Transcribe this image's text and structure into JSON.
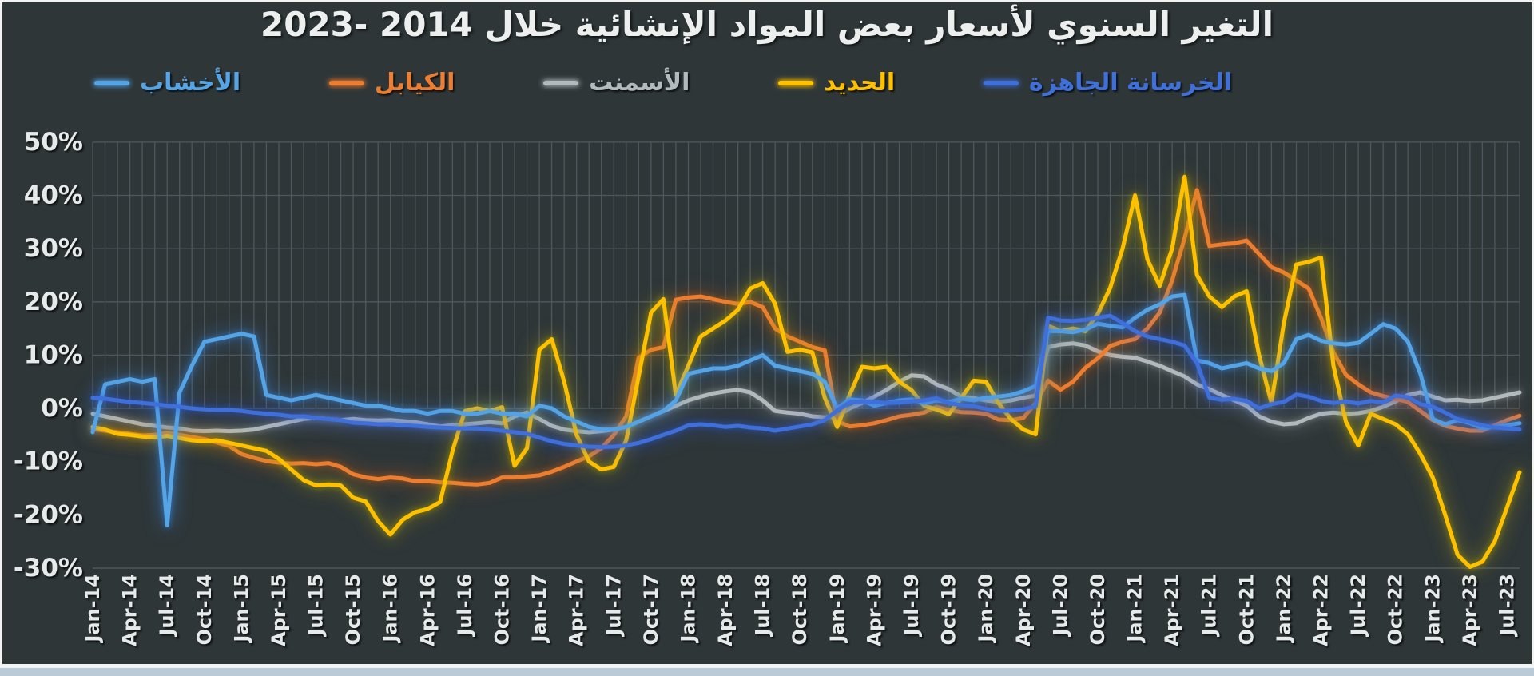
{
  "page": {
    "background": "#F2F4F3",
    "panel_background": "#2E3638",
    "grid_color": "#4E585C",
    "axis_text_color": "#E6EAEA",
    "bottom_bar_color": "#B9CBD6"
  },
  "title": {
    "text": "التغير السنوي لأسعار بعض المواد الإنشائية خلال 2014 -2023"
  },
  "legend": {
    "items": [
      {
        "id": "wood",
        "label": "الأخشاب",
        "color": "#55A4E5"
      },
      {
        "id": "cables",
        "label": "الكيابل",
        "color": "#ED7D31"
      },
      {
        "id": "cement",
        "label": "الأسمنت",
        "color": "#B3BABD"
      },
      {
        "id": "steel",
        "label": "الحديد",
        "color": "#FFC000"
      },
      {
        "id": "ready-mix-concrete",
        "label": "الخرسانة الجاهزة",
        "color": "#3F6FD8"
      }
    ]
  },
  "chart_data": {
    "type": "line",
    "title": "التغير السنوي لأسعار بعض المواد الإنشائية خلال 2014 -2023",
    "xlabel": "",
    "ylabel": "",
    "ylim": [
      -30,
      50
    ],
    "grid": true,
    "legend_position": "top",
    "y_tick_values": [
      50,
      40,
      30,
      20,
      10,
      0,
      -10,
      -20,
      -30
    ],
    "y_tick_labels": [
      "50%",
      "40%",
      "30%",
      "20%",
      "10%",
      "0%",
      "-10%",
      "-20%",
      "-30%"
    ],
    "x_tick_every": 3,
    "months_total": 116,
    "x_start": "Jan-14",
    "x_end": "Aug-23",
    "x_tick_labels": [
      "Jan-14",
      "Apr-14",
      "Jul-14",
      "Oct-14",
      "Jan-15",
      "Apr-15",
      "Jul-15",
      "Oct-15",
      "Jan-16",
      "Apr-16",
      "Jul-16",
      "Oct-16",
      "Jan-17",
      "Apr-17",
      "Jul-17",
      "Oct-17",
      "Jan-18",
      "Apr-18",
      "Jul-18",
      "Oct-18",
      "Jan-19",
      "Apr-19",
      "Jul-19",
      "Oct-19",
      "Jan-20",
      "Apr-20",
      "Jul-20",
      "Oct-20",
      "Jan-21",
      "Apr-21",
      "Jul-21",
      "Oct-21",
      "Jan-22",
      "Apr-22",
      "Jul-22",
      "Oct-22",
      "Jan-23",
      "Apr-23",
      "Jul-23"
    ],
    "series": [
      {
        "name": "الأسمنت",
        "name_en": "cement",
        "color": "#B3BABD",
        "glow": "rgba(225,230,230,0.40)",
        "values": [
          -1,
          -1.5,
          -2,
          -2.5,
          -3,
          -3.3,
          -3.6,
          -3.8,
          -4.2,
          -4.3,
          -4.2,
          -4.3,
          -4.2,
          -4,
          -3.5,
          -3,
          -2.5,
          -2,
          -1.8,
          -2,
          -2.2,
          -2,
          -2.2,
          -2.3,
          -2.2,
          -2.4,
          -2.6,
          -3,
          -3.4,
          -3.2,
          -3,
          -2.8,
          -2.6,
          -2.8,
          -1.5,
          -0.8,
          -2,
          -3.3,
          -4,
          -4.3,
          -4.5,
          -4.3,
          -4,
          -3.5,
          -2.5,
          -1.5,
          -0.5,
          0.5,
          1.5,
          2.2,
          2.8,
          3.2,
          3.5,
          3,
          1.5,
          -0.5,
          -0.8,
          -1,
          -1.5,
          -1.7,
          -1.5,
          0,
          1,
          2.2,
          3.5,
          5,
          6.2,
          6,
          4.5,
          3.6,
          2.2,
          1.9,
          1.5,
          1.2,
          1.5,
          2,
          2.4,
          11.5,
          12,
          12.2,
          11.8,
          10.7,
          10,
          9.7,
          9.5,
          8.8,
          8,
          7,
          6,
          4.5,
          3.6,
          2.5,
          1.5,
          0.5,
          -1.5,
          -2.5,
          -3,
          -2.8,
          -1.8,
          -1,
          -0.8,
          -1,
          -0.9,
          -0.5,
          0.3,
          1.3,
          2.5,
          3,
          2.2,
          1.5,
          1.6,
          1.4,
          1.5,
          2,
          2.5,
          3
        ]
      },
      {
        "name": "الكيابل",
        "name_en": "cables",
        "color": "#ED7D31",
        "glow": "rgba(215,100,15,0.60)",
        "values": [
          -3.9,
          -4.2,
          -4.5,
          -4.8,
          -5.1,
          -5,
          -4.6,
          -5,
          -5.4,
          -5.8,
          -6.4,
          -7.1,
          -8.6,
          -9.3,
          -9.9,
          -10.2,
          -10.4,
          -10.3,
          -10.5,
          -10.3,
          -11,
          -12.4,
          -13,
          -13.3,
          -13,
          -13.2,
          -13.7,
          -13.7,
          -13.9,
          -14,
          -14.2,
          -14.3,
          -14,
          -13,
          -13,
          -12.8,
          -12.6,
          -11.9,
          -11,
          -10,
          -9,
          -7.5,
          -5,
          -1.5,
          9.5,
          11,
          11.5,
          20.4,
          20.8,
          21,
          20.5,
          20,
          19.6,
          20,
          19,
          15,
          13.5,
          12.5,
          11.5,
          10.9,
          -2.4,
          -3.4,
          -3.2,
          -2.8,
          -2.2,
          -1.5,
          -1.2,
          -0.8,
          0.3,
          -0.3,
          -0.7,
          -0.8,
          -1,
          -2.1,
          -2.2,
          -1.8,
          1,
          5.2,
          3.5,
          5,
          7.6,
          9.4,
          11.7,
          12.5,
          13,
          15,
          18,
          24,
          32,
          41,
          30.5,
          30.8,
          31,
          31.5,
          29,
          26.5,
          25.5,
          24,
          22.5,
          17,
          10.5,
          6.3,
          4.5,
          3,
          2.3,
          1.8,
          1.2,
          -0.5,
          -2.2,
          -3.3,
          -3.8,
          -4.2,
          -4.2,
          -3.2,
          -2.2,
          -1.4
        ]
      },
      {
        "name": "الحديد",
        "name_en": "steel",
        "color": "#FFC000",
        "glow": "rgba(185,170,0,0.65)",
        "values": [
          -3.5,
          -4,
          -4.8,
          -5,
          -5.3,
          -5.5,
          -5.2,
          -5.6,
          -6,
          -6.2,
          -6,
          -6.5,
          -7,
          -7.5,
          -8,
          -9.5,
          -11.5,
          -13.5,
          -14.5,
          -14.3,
          -14.5,
          -16.8,
          -17.5,
          -21.2,
          -23.7,
          -20.9,
          -19.5,
          -18.9,
          -17.6,
          -8,
          -0.5,
          0,
          -0.5,
          0.2,
          -10.8,
          -7.5,
          11,
          13,
          5,
          -5,
          -10,
          -11.5,
          -11,
          -6,
          6,
          18,
          20.5,
          2.5,
          8,
          13.5,
          15,
          16.5,
          18.5,
          22.5,
          23.5,
          19.6,
          10.6,
          11,
          10.5,
          2,
          -3.5,
          2.5,
          7.8,
          7.5,
          7.8,
          5,
          3.4,
          0.5,
          -0.2,
          -1.1,
          2,
          5.2,
          5,
          1,
          -2,
          -4,
          -4.9,
          15.5,
          14.5,
          15,
          14.5,
          17.7,
          22.6,
          30,
          40,
          28,
          23,
          30,
          43.5,
          25,
          21,
          19,
          21,
          22,
          10,
          1,
          16,
          27,
          27.5,
          28.3,
          8,
          -2.5,
          -7,
          -1,
          -2,
          -3,
          -4.9,
          -8.6,
          -13,
          -20,
          -27.5,
          -29.8,
          -28.8,
          -25,
          -18.5,
          -12
        ]
      },
      {
        "name": "الأخشاب",
        "name_en": "wood",
        "color": "#55A4E5",
        "glow": "rgba(60,140,230,0.65)",
        "values": [
          -4.5,
          4.5,
          5,
          5.5,
          5,
          5.5,
          -22,
          3,
          8,
          12.5,
          13,
          13.5,
          14,
          13.5,
          2.5,
          2,
          1.5,
          2,
          2.5,
          2,
          1.5,
          1,
          0.5,
          0.5,
          0,
          -0.5,
          -0.5,
          -1,
          -0.5,
          -0.5,
          -1,
          -1,
          -0.5,
          -1,
          -1,
          -1.5,
          0.5,
          0,
          -1.5,
          -2.5,
          -3.5,
          -4,
          -4,
          -3.5,
          -2.5,
          -1.5,
          -0.5,
          1.5,
          6.5,
          7,
          7.5,
          7.5,
          8,
          9,
          10,
          8,
          7.5,
          7,
          6.5,
          5,
          0,
          1.7,
          1.5,
          0.5,
          1,
          1.5,
          1.7,
          1,
          1.5,
          1.2,
          1.8,
          1.5,
          2,
          2.2,
          2.5,
          3.2,
          4.2,
          14.5,
          14.5,
          14.3,
          14.8,
          15.9,
          15.5,
          15.2,
          17,
          18.5,
          19.5,
          21,
          21.3,
          9,
          8.5,
          7.5,
          8,
          8.5,
          7.5,
          7,
          8.5,
          13,
          13.8,
          12.7,
          12.2,
          12,
          12.3,
          14,
          15.8,
          15,
          12.5,
          6.5,
          -2,
          -3,
          -2.2,
          -2.8,
          -3.7,
          -3.5,
          -3.2,
          -2.8
        ]
      },
      {
        "name": "الخرسانة الجاهزة",
        "name_en": "ready-mix-concrete",
        "color": "#3F6FD8",
        "glow": "rgba(45,90,220,0.65)",
        "values": [
          2,
          1.8,
          1.5,
          1.2,
          1,
          0.8,
          0.5,
          0.3,
          0,
          -0.2,
          -0.3,
          -0.3,
          -0.5,
          -0.8,
          -1,
          -1.2,
          -1.5,
          -1.5,
          -1.8,
          -2,
          -2.2,
          -2.7,
          -2.8,
          -3,
          -3,
          -3.2,
          -3.3,
          -3.5,
          -3.6,
          -3.7,
          -3.8,
          -3.8,
          -4,
          -4.2,
          -4.5,
          -4.8,
          -5.5,
          -6.2,
          -6.7,
          -7,
          -7.2,
          -7.3,
          -7.2,
          -7,
          -6.5,
          -5.8,
          -5,
          -4.2,
          -3.2,
          -3,
          -3.2,
          -3.5,
          -3.3,
          -3.6,
          -3.8,
          -4.2,
          -3.8,
          -3.4,
          -3,
          -2.2,
          -0.4,
          1.1,
          1.3,
          1.2,
          1,
          1.1,
          1.3,
          1.5,
          1.9,
          1,
          0.6,
          0.4,
          -0.1,
          -0.5,
          -0.4,
          -0.2,
          0.4,
          17,
          16.5,
          16.4,
          16.6,
          17,
          17.4,
          16,
          14.5,
          13.5,
          13,
          12.5,
          11.8,
          8.5,
          2,
          1.6,
          1.8,
          1.4,
          0,
          0.8,
          1.2,
          2.6,
          2.2,
          1.4,
          1,
          1.3,
          0.9,
          1.4,
          1.1,
          2.4,
          2.1,
          0.8,
          0.3,
          -0.8,
          -2,
          -2.6,
          -3.2,
          -3.6,
          -3.8,
          -4
        ]
      }
    ]
  }
}
